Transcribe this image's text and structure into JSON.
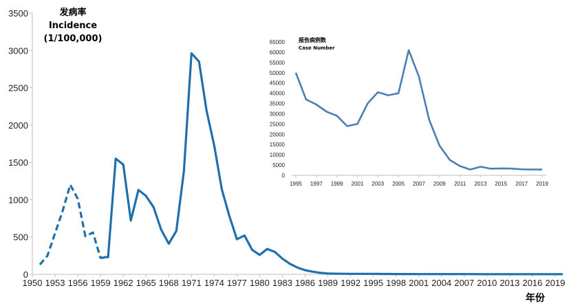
{
  "chart_data": [
    {
      "type": "line",
      "ylabel_lines": [
        "发病率",
        "Incidence",
        "(1/100,000)"
      ],
      "xlabel": "年份",
      "ylim": [
        0,
        3500
      ],
      "xlim": [
        1950,
        2020
      ],
      "yticks": [
        0,
        500,
        1000,
        1500,
        2000,
        2500,
        3000,
        3500
      ],
      "xticks": [
        1950,
        1953,
        1956,
        1959,
        1962,
        1965,
        1968,
        1971,
        1974,
        1977,
        1980,
        1983,
        1986,
        1989,
        1992,
        1995,
        1998,
        2001,
        2004,
        2007,
        2010,
        2013,
        2016,
        2019
      ],
      "color": "#1f6fad",
      "dashed_segment": {
        "x": [
          1951,
          1952,
          1953,
          1954,
          1955,
          1956,
          1957,
          1958,
          1959,
          1960
        ],
        "y": [
          130,
          250,
          550,
          850,
          1200,
          1010,
          510,
          560,
          220,
          230
        ]
      },
      "solid_segment": {
        "x": [
          1959.5,
          1960,
          1961,
          1962,
          1963,
          1964,
          1965,
          1966,
          1967,
          1968,
          1969,
          1970,
          1971,
          1972,
          1973,
          1974,
          1975,
          1976,
          1977,
          1978,
          1979,
          1980,
          1981,
          1982,
          1983,
          1984,
          1985,
          1986,
          1987,
          1988,
          1989,
          1990,
          1991,
          1992,
          1993,
          1994,
          1995,
          1996,
          1997,
          1998,
          1999,
          2000,
          2001,
          2002,
          2003,
          2004,
          2005,
          2006,
          2007,
          2008,
          2009,
          2010,
          2011,
          2012,
          2013,
          2014,
          2015,
          2016,
          2017,
          2018,
          2019,
          2020
        ],
        "y": [
          230,
          230,
          1550,
          1470,
          720,
          1130,
          1050,
          900,
          600,
          410,
          580,
          1380,
          2960,
          2850,
          2190,
          1730,
          1140,
          780,
          470,
          520,
          330,
          260,
          340,
          300,
          210,
          140,
          90,
          55,
          35,
          20,
          10,
          8,
          7,
          6,
          6,
          6,
          6,
          5,
          5,
          4,
          4,
          4,
          3,
          3,
          3,
          3,
          3,
          3,
          3,
          3,
          2,
          2,
          2,
          2,
          2,
          2,
          2,
          2,
          2,
          2,
          2,
          2
        ]
      }
    },
    {
      "type": "line",
      "title": "报告病例数",
      "subtitle": "Case Number",
      "ylim": [
        0,
        65000
      ],
      "xlim": [
        1995,
        2019
      ],
      "yticks": [
        0,
        5000,
        10000,
        15000,
        20000,
        25000,
        30000,
        35000,
        40000,
        45000,
        50000,
        55000,
        60000,
        65000
      ],
      "xticks": [
        1995,
        1997,
        1999,
        2001,
        2003,
        2005,
        2007,
        2009,
        2011,
        2013,
        2015,
        2017,
        2019
      ],
      "color": "#4a7eb5",
      "x": [
        1995,
        1996,
        1997,
        1998,
        1999,
        2000,
        2001,
        2002,
        2003,
        2004,
        2005,
        2006,
        2007,
        2008,
        2009,
        2010,
        2011,
        2012,
        2013,
        2014,
        2015,
        2016,
        2017,
        2018,
        2019
      ],
      "y": [
        50000,
        37000,
        34500,
        31000,
        29000,
        24000,
        25000,
        35000,
        40500,
        39000,
        40000,
        61000,
        48000,
        27000,
        14500,
        7500,
        4500,
        2800,
        4200,
        3200,
        3400,
        3300,
        2900,
        2800,
        2800
      ]
    }
  ]
}
